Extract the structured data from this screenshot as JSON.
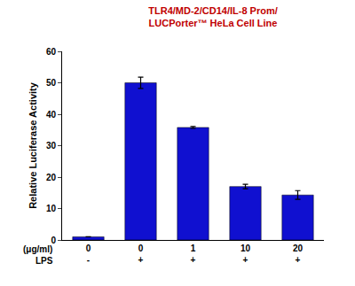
{
  "chart_data": {
    "type": "bar",
    "title": "TLR4/MD-2/CD14/IL-8 Prom/\nLUCPorter™ HeLa Cell Line",
    "y_label": "Relative Luciferase Activity",
    "categories": [
      "0",
      "0",
      "1",
      "10",
      "20"
    ],
    "lps": [
      "-",
      "+",
      "+",
      "+",
      "+"
    ],
    "row_labels": [
      "(μg/ml)",
      "LPS"
    ],
    "values": [
      1,
      50,
      35.8,
      17,
      14.3
    ],
    "errors": [
      0,
      1.8,
      0.3,
      0.7,
      1.4
    ],
    "color": "#1010d0",
    "ylim": [
      0,
      60
    ],
    "yticks": [
      0,
      10,
      20,
      30,
      40,
      50,
      60
    ],
    "grid": false
  }
}
